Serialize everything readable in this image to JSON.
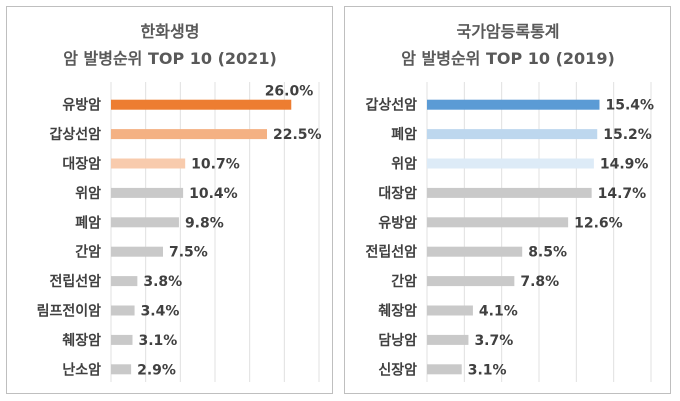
{
  "chart_data": [
    {
      "type": "bar",
      "title": "한화생명",
      "subtitle": "암 발병순위 TOP 10 (2021)",
      "xlim": [
        0,
        30
      ],
      "grid": true,
      "categories": [
        "유방암",
        "갑상선암",
        "대장암",
        "위암",
        "폐암",
        "간암",
        "전립선암",
        "림프전이암",
        "췌장암",
        "난소암"
      ],
      "values": [
        26.0,
        22.5,
        10.7,
        10.4,
        9.8,
        7.5,
        3.8,
        3.4,
        3.1,
        2.9
      ],
      "value_labels": [
        "26.0%",
        "22.5%",
        "10.7%",
        "10.4%",
        "9.8%",
        "7.5%",
        "3.8%",
        "3.4%",
        "3.1%",
        "2.9%"
      ],
      "colors": [
        "#ed7d31",
        "#f4b183",
        "#f8cbad",
        "#c9c9c9",
        "#c9c9c9",
        "#c9c9c9",
        "#c9c9c9",
        "#c9c9c9",
        "#c9c9c9",
        "#c9c9c9"
      ]
    },
    {
      "type": "bar",
      "title": "국가암등록통계",
      "subtitle": "암 발병순위 TOP 10 (2019)",
      "xlim": [
        0,
        20
      ],
      "grid": true,
      "categories": [
        "갑상선암",
        "폐암",
        "위암",
        "대장암",
        "유방암",
        "전립선암",
        "간암",
        "췌장암",
        "담낭암",
        "신장암"
      ],
      "values": [
        15.4,
        15.2,
        14.9,
        14.7,
        12.6,
        8.5,
        7.8,
        4.1,
        3.7,
        3.1
      ],
      "value_labels": [
        "15.4%",
        "15.2%",
        "14.9%",
        "14.7%",
        "12.6%",
        "8.5%",
        "7.8%",
        "4.1%",
        "3.7%",
        "3.1%"
      ],
      "colors": [
        "#5b9bd5",
        "#bdd7ee",
        "#ddebf7",
        "#c9c9c9",
        "#c9c9c9",
        "#c9c9c9",
        "#c9c9c9",
        "#c9c9c9",
        "#c9c9c9",
        "#c9c9c9"
      ]
    }
  ]
}
